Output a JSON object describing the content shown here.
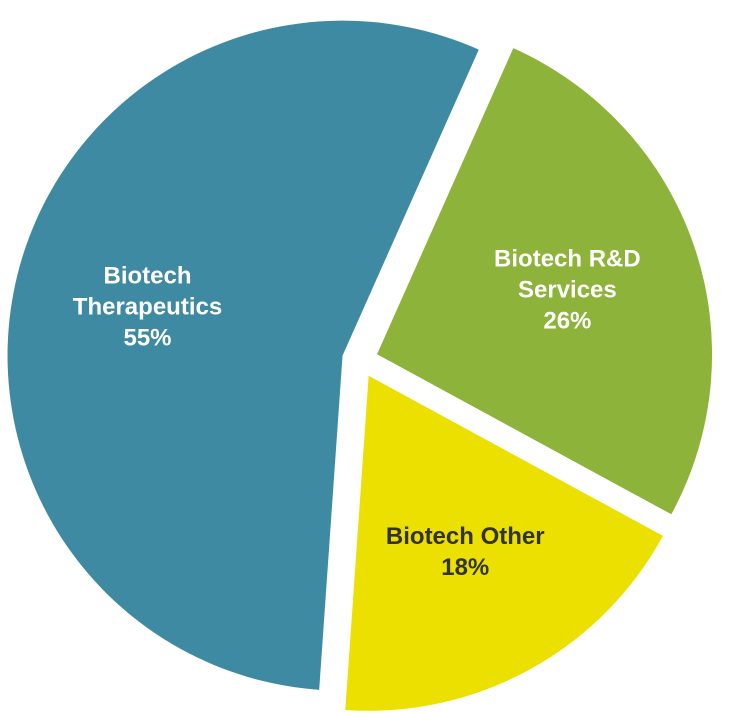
{
  "chart_data": {
    "type": "pie",
    "categories": [
      "Biotech Therapeutics",
      "Biotech R&D Services",
      "Biotech Other"
    ],
    "values": [
      55,
      26,
      18
    ],
    "value_labels": [
      "55%",
      "26%",
      "18%"
    ],
    "colors": [
      "#3f8aa3",
      "#8db33a",
      "#ebe000"
    ]
  }
}
